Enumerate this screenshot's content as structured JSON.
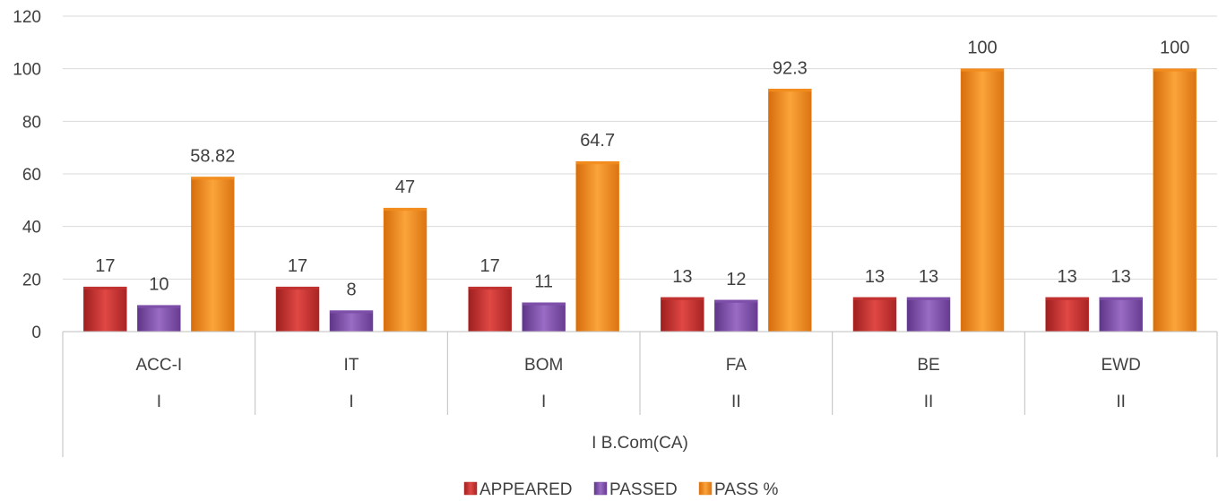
{
  "chart_data": {
    "type": "bar",
    "categories": [
      "ACC-I",
      "IT",
      "BOM",
      "FA",
      "BE",
      "EWD"
    ],
    "semesters": [
      "I",
      "I",
      "I",
      "II",
      "II",
      "II"
    ],
    "group_label": "I B.Com(CA)",
    "series": [
      {
        "name": "APPEARED",
        "values": [
          17,
          17,
          17,
          13,
          13,
          13
        ],
        "labels": [
          "17",
          "17",
          "17",
          "13",
          "13",
          "13"
        ],
        "color": "#c0312f"
      },
      {
        "name": "PASSED",
        "values": [
          10,
          8,
          11,
          12,
          13,
          13
        ],
        "labels": [
          "10",
          "8",
          "11",
          "12",
          "13",
          "13"
        ],
        "color": "#7d4fa8"
      },
      {
        "name": "PASS %",
        "values": [
          58.82,
          47,
          64.7,
          92.3,
          100,
          100
        ],
        "labels": [
          "58.82",
          "47",
          "64.7",
          "92.3",
          "100",
          "100"
        ],
        "color": "#f28c1e"
      }
    ],
    "y_ticks": [
      "0",
      "20",
      "40",
      "60",
      "80",
      "100",
      "120"
    ],
    "ylim": [
      0,
      120
    ],
    "grid": true,
    "legend": "bottom"
  }
}
